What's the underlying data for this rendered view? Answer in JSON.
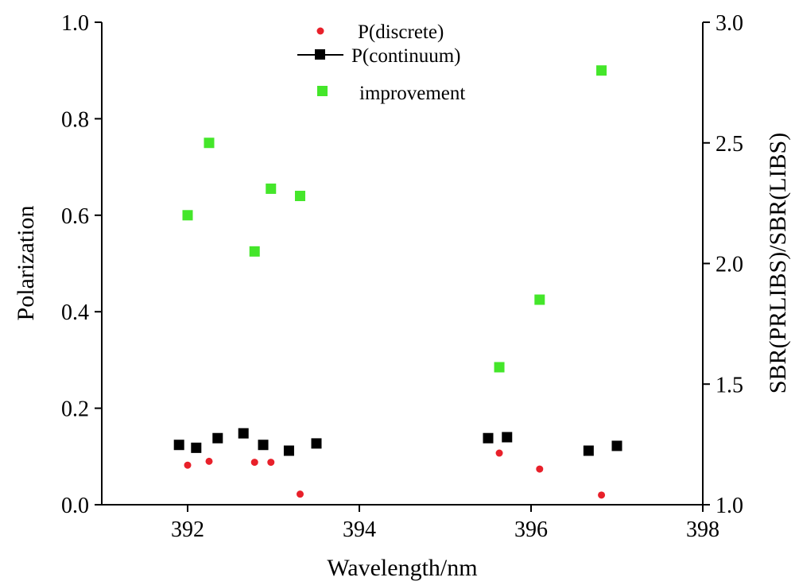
{
  "chart_data": {
    "type": "scatter",
    "title": "",
    "xlabel": "Wavelength/nm",
    "ylabel": "Polarization",
    "y2label": "SBR(PRLIBS)/SBR(LIBS)",
    "xlim": [
      391,
      398
    ],
    "ylim": [
      0.0,
      1.0
    ],
    "y2lim": [
      1.0,
      3.0
    ],
    "xticks": [
      "392",
      "394",
      "396",
      "398"
    ],
    "yticks": [
      "0.0",
      "0.2",
      "0.4",
      "0.6",
      "0.8",
      "1.0"
    ],
    "y2ticks": [
      "1.0",
      "1.5",
      "2.0",
      "2.5",
      "3.0"
    ],
    "grid": false,
    "legend_position": "top-center",
    "series": [
      {
        "name": "P(discrete)",
        "axis": "left",
        "marker": "circle",
        "color": "#e8202a",
        "x": [
          392.0,
          392.25,
          392.78,
          392.97,
          393.31,
          395.63,
          396.1,
          396.82
        ],
        "y": [
          0.082,
          0.09,
          0.088,
          0.088,
          0.022,
          0.107,
          0.074,
          0.02
        ]
      },
      {
        "name": "P(continuum)",
        "axis": "left",
        "marker": "square",
        "color": "#000000",
        "x": [
          391.9,
          392.1,
          392.35,
          392.65,
          392.88,
          393.18,
          393.5,
          395.5,
          395.72,
          396.67,
          397.0
        ],
        "y": [
          0.124,
          0.118,
          0.138,
          0.148,
          0.124,
          0.112,
          0.127,
          0.138,
          0.14,
          0.112,
          0.122
        ]
      },
      {
        "name": "improvement",
        "axis": "right",
        "marker": "square",
        "color": "#44e62a",
        "x": [
          392.0,
          392.25,
          392.78,
          392.97,
          393.31,
          395.63,
          396.1,
          396.82
        ],
        "y": [
          2.2,
          2.5,
          2.05,
          2.31,
          2.28,
          1.57,
          1.85,
          2.8
        ]
      }
    ]
  }
}
